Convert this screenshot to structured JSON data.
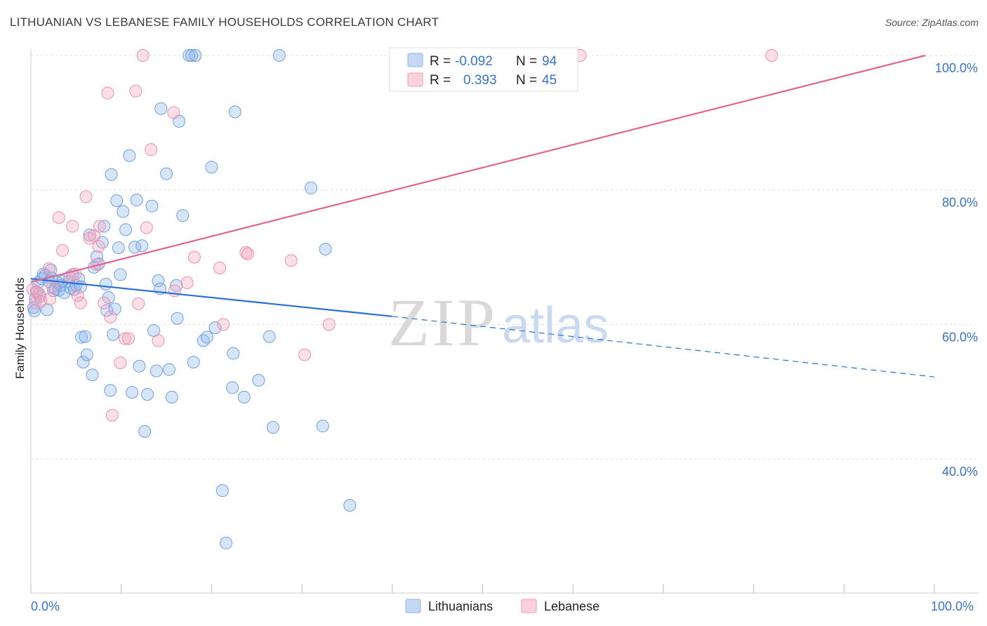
{
  "title": "LITHUANIAN VS LEBANESE FAMILY HOUSEHOLDS CORRELATION CHART",
  "source": "Source: ZipAtlas.com",
  "watermark": {
    "zip": "ZIP",
    "atlas": "atlas"
  },
  "legend": {
    "r_label": "R =",
    "n_label": "N =",
    "rows": [
      {
        "name": "Lithuanians",
        "r": "-0.092",
        "n": "94",
        "color": "#8fb6e8"
      },
      {
        "name": "Lebanese",
        "r": "0.393",
        "n": "45",
        "color": "#f2a0b8"
      }
    ]
  },
  "chart_data": {
    "type": "scatter",
    "title": "LITHUANIAN VS LEBANESE FAMILY HOUSEHOLDS CORRELATION CHART",
    "xlabel": "",
    "ylabel": "Family Households",
    "xlim": [
      0,
      100
    ],
    "ylim": [
      20,
      100
    ],
    "x_tick_labels": [
      "0.0%",
      "100.0%"
    ],
    "y_ticks": [
      40,
      60,
      80,
      100
    ],
    "y_tick_labels": [
      "40.0%",
      "60.0%",
      "80.0%",
      "100.0%"
    ],
    "grid": true,
    "series": [
      {
        "name": "Lithuanians",
        "color": "#6fa0e0",
        "line_color": "#2a6fd6",
        "trend": {
          "x0": 0,
          "y0": 66.8,
          "x1": 40,
          "y1": 61.2,
          "dashed_to_x": 100,
          "dashed_to_y": 52.2
        },
        "points": [
          [
            0.3,
            62.5
          ],
          [
            0.4,
            62.0
          ],
          [
            0.5,
            63.8
          ],
          [
            0.6,
            64.9
          ],
          [
            0.8,
            66.2
          ],
          [
            1.0,
            64.2
          ],
          [
            1.2,
            66.8
          ],
          [
            1.4,
            67.5
          ],
          [
            1.6,
            67.3
          ],
          [
            1.8,
            62.2
          ],
          [
            2.0,
            66.4
          ],
          [
            2.2,
            68.1
          ],
          [
            2.3,
            66.9
          ],
          [
            2.5,
            65.0
          ],
          [
            2.7,
            65.3
          ],
          [
            2.9,
            66.3
          ],
          [
            3.1,
            65.1
          ],
          [
            3.3,
            65.8
          ],
          [
            3.5,
            66.4
          ],
          [
            3.7,
            64.7
          ],
          [
            4.2,
            66.4
          ],
          [
            4.4,
            65.4
          ],
          [
            4.6,
            67.4
          ],
          [
            4.8,
            65.2
          ],
          [
            5.0,
            65.8
          ],
          [
            5.3,
            66.8
          ],
          [
            5.5,
            65.6
          ],
          [
            5.6,
            58.1
          ],
          [
            5.8,
            54.4
          ],
          [
            6.0,
            58.2
          ],
          [
            6.2,
            55.5
          ],
          [
            6.5,
            73.3
          ],
          [
            6.8,
            52.5
          ],
          [
            7.0,
            68.5
          ],
          [
            7.3,
            70.1
          ],
          [
            7.5,
            69.0
          ],
          [
            7.9,
            72.2
          ],
          [
            8.1,
            74.6
          ],
          [
            8.3,
            66.0
          ],
          [
            8.4,
            62.1
          ],
          [
            8.6,
            64.0
          ],
          [
            8.8,
            50.2
          ],
          [
            8.9,
            82.3
          ],
          [
            9.1,
            58.5
          ],
          [
            9.3,
            62.3
          ],
          [
            9.5,
            78.4
          ],
          [
            9.7,
            71.4
          ],
          [
            9.9,
            67.4
          ],
          [
            10.2,
            76.8
          ],
          [
            10.5,
            74.1
          ],
          [
            10.9,
            85.1
          ],
          [
            11.2,
            49.9
          ],
          [
            11.5,
            71.5
          ],
          [
            11.7,
            78.5
          ],
          [
            12.0,
            53.8
          ],
          [
            12.3,
            71.7
          ],
          [
            12.6,
            44.1
          ],
          [
            12.9,
            49.6
          ],
          [
            13.4,
            77.6
          ],
          [
            13.6,
            59.1
          ],
          [
            13.9,
            53.1
          ],
          [
            14.1,
            66.5
          ],
          [
            14.3,
            65.3
          ],
          [
            14.4,
            92.1
          ],
          [
            15.0,
            82.4
          ],
          [
            15.3,
            53.3
          ],
          [
            15.6,
            49.2
          ],
          [
            16.1,
            65.8
          ],
          [
            16.2,
            60.9
          ],
          [
            16.4,
            90.2
          ],
          [
            16.8,
            76.2
          ],
          [
            17.5,
            100
          ],
          [
            17.8,
            100
          ],
          [
            18.2,
            100
          ],
          [
            18.0,
            54.4
          ],
          [
            19.1,
            57.6
          ],
          [
            19.5,
            58.1
          ],
          [
            20.0,
            83.4
          ],
          [
            20.4,
            59.5
          ],
          [
            21.2,
            35.3
          ],
          [
            21.6,
            27.5
          ],
          [
            22.3,
            50.6
          ],
          [
            22.4,
            55.7
          ],
          [
            22.6,
            91.6
          ],
          [
            23.6,
            49.2
          ],
          [
            25.2,
            51.7
          ],
          [
            26.4,
            58.2
          ],
          [
            26.8,
            44.7
          ],
          [
            27.5,
            100
          ],
          [
            31.0,
            80.3
          ],
          [
            32.3,
            44.9
          ],
          [
            32.6,
            71.2
          ],
          [
            35.3,
            33.1
          ]
        ]
      },
      {
        "name": "Lebanese",
        "color": "#ee8fae",
        "line_color": "#e0648e",
        "trend": {
          "x0": 0,
          "y0": 66.3,
          "x1": 99,
          "y1": 100
        },
        "points": [
          [
            0.2,
            65.2
          ],
          [
            0.5,
            63.2
          ],
          [
            0.7,
            64.8
          ],
          [
            0.9,
            64.6
          ],
          [
            1.1,
            63.4
          ],
          [
            2.0,
            68.3
          ],
          [
            2.1,
            63.8
          ],
          [
            2.4,
            65.6
          ],
          [
            3.1,
            75.9
          ],
          [
            3.5,
            71.0
          ],
          [
            4.3,
            67.1
          ],
          [
            4.6,
            74.6
          ],
          [
            4.9,
            67.5
          ],
          [
            5.2,
            64.3
          ],
          [
            5.5,
            63.2
          ],
          [
            6.1,
            79.0
          ],
          [
            6.5,
            72.8
          ],
          [
            7.0,
            73.2
          ],
          [
            7.5,
            71.6
          ],
          [
            7.3,
            68.9
          ],
          [
            7.6,
            74.6
          ],
          [
            8.1,
            63.2
          ],
          [
            8.5,
            94.4
          ],
          [
            8.8,
            61.1
          ],
          [
            9.0,
            46.5
          ],
          [
            9.9,
            54.3
          ],
          [
            10.4,
            57.9
          ],
          [
            10.8,
            57.9
          ],
          [
            11.6,
            94.7
          ],
          [
            11.9,
            63.1
          ],
          [
            12.4,
            100
          ],
          [
            12.8,
            74.4
          ],
          [
            13.3,
            86.0
          ],
          [
            14.1,
            57.6
          ],
          [
            15.8,
            91.5
          ],
          [
            15.9,
            65.0
          ],
          [
            17.3,
            66.2
          ],
          [
            18.1,
            70.0
          ],
          [
            20.9,
            68.4
          ],
          [
            21.3,
            60.0
          ],
          [
            23.8,
            70.7
          ],
          [
            24.0,
            70.5
          ],
          [
            28.8,
            69.5
          ],
          [
            30.3,
            55.5
          ],
          [
            33.0,
            60.0
          ],
          [
            60.8,
            100
          ],
          [
            82.0,
            100
          ]
        ]
      }
    ]
  }
}
